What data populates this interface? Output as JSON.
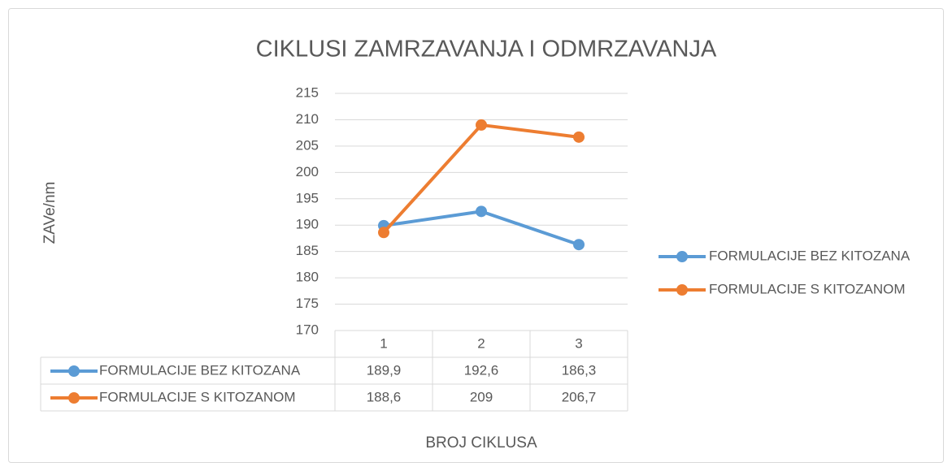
{
  "chart_data": {
    "type": "line",
    "title": "CIKLUSI ZAMRZAVANJA I ODMRZAVANJA",
    "y_label": "ZAVe/nm",
    "x_label": "BROJ CIKLUSA",
    "categories": [
      "1",
      "2",
      "3"
    ],
    "series": [
      {
        "name": "FORMULACIJE BEZ KITOZANA",
        "color": "#5b9bd5",
        "values": [
          189.9,
          192.6,
          186.3
        ],
        "value_labels": [
          "189,9",
          "192,6",
          "186,3"
        ]
      },
      {
        "name": "FORMULACIJE S KITOZANOM",
        "color": "#ed7d31",
        "values": [
          188.6,
          209,
          206.7
        ],
        "value_labels": [
          "188,6",
          "209",
          "206,7"
        ]
      }
    ],
    "ylim": [
      170,
      215
    ],
    "yticks": [
      170,
      175,
      180,
      185,
      190,
      195,
      200,
      205,
      210,
      215
    ],
    "grid": true,
    "legend": "right"
  }
}
